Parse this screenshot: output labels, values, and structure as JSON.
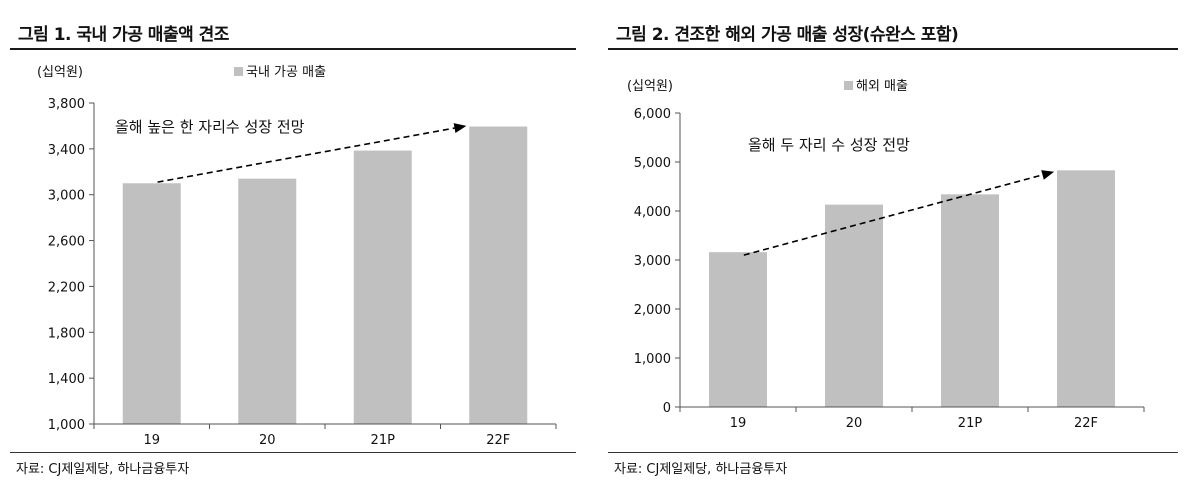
{
  "colors": {
    "bar": "#c0c0c0",
    "axis": "#555555",
    "text": "#111111"
  },
  "charts": [
    {
      "figure_title": "그림 1. 국내 가공 매출액 견조",
      "source": "자료: CJ제일제당, 하나금융투자",
      "chart_data": {
        "type": "bar",
        "unit_label": "(십억원)",
        "categories": [
          "19",
          "20",
          "21P",
          "22F"
        ],
        "series": [
          {
            "name": "국내 가공 매출",
            "values": [
              3100,
              3140,
              3385,
              3595
            ]
          }
        ],
        "ylim": [
          1000,
          3800
        ],
        "yticks": [
          1000,
          1400,
          1800,
          2200,
          2600,
          3000,
          3400,
          3800
        ],
        "ytick_labels": [
          "1,000",
          "1,400",
          "1,800",
          "2,200",
          "2,600",
          "3,000",
          "3,400",
          "3,800"
        ],
        "legend_position": "top",
        "grid": false,
        "annotation": "올해 높은 한 자리수 성장 전망",
        "arrow": {
          "from": {
            "category": "19",
            "value": 3110
          },
          "to": {
            "category": "22F",
            "value": 3600
          }
        }
      }
    },
    {
      "figure_title": "그림 2. 견조한 해외 가공 매출 성장(슈완스 포함)",
      "source": "자료: CJ제일제당, 하나금융투자",
      "chart_data": {
        "type": "bar",
        "unit_label": "(십억원)",
        "categories": [
          "19",
          "20",
          "21P",
          "22F"
        ],
        "series": [
          {
            "name": "해외 매출",
            "values": [
              3160,
              4130,
              4340,
              4830
            ]
          }
        ],
        "ylim": [
          0,
          6000
        ],
        "yticks": [
          0,
          1000,
          2000,
          3000,
          4000,
          5000,
          6000
        ],
        "ytick_labels": [
          "0",
          "1,000",
          "2,000",
          "3,000",
          "4,000",
          "5,000",
          "6,000"
        ],
        "legend_position": "top",
        "grid": false,
        "annotation": "올해 두 자리 수 성장 전망",
        "arrow": {
          "from": {
            "category": "19",
            "value": 3100
          },
          "to": {
            "category": "22F",
            "value": 4800
          }
        }
      }
    }
  ]
}
